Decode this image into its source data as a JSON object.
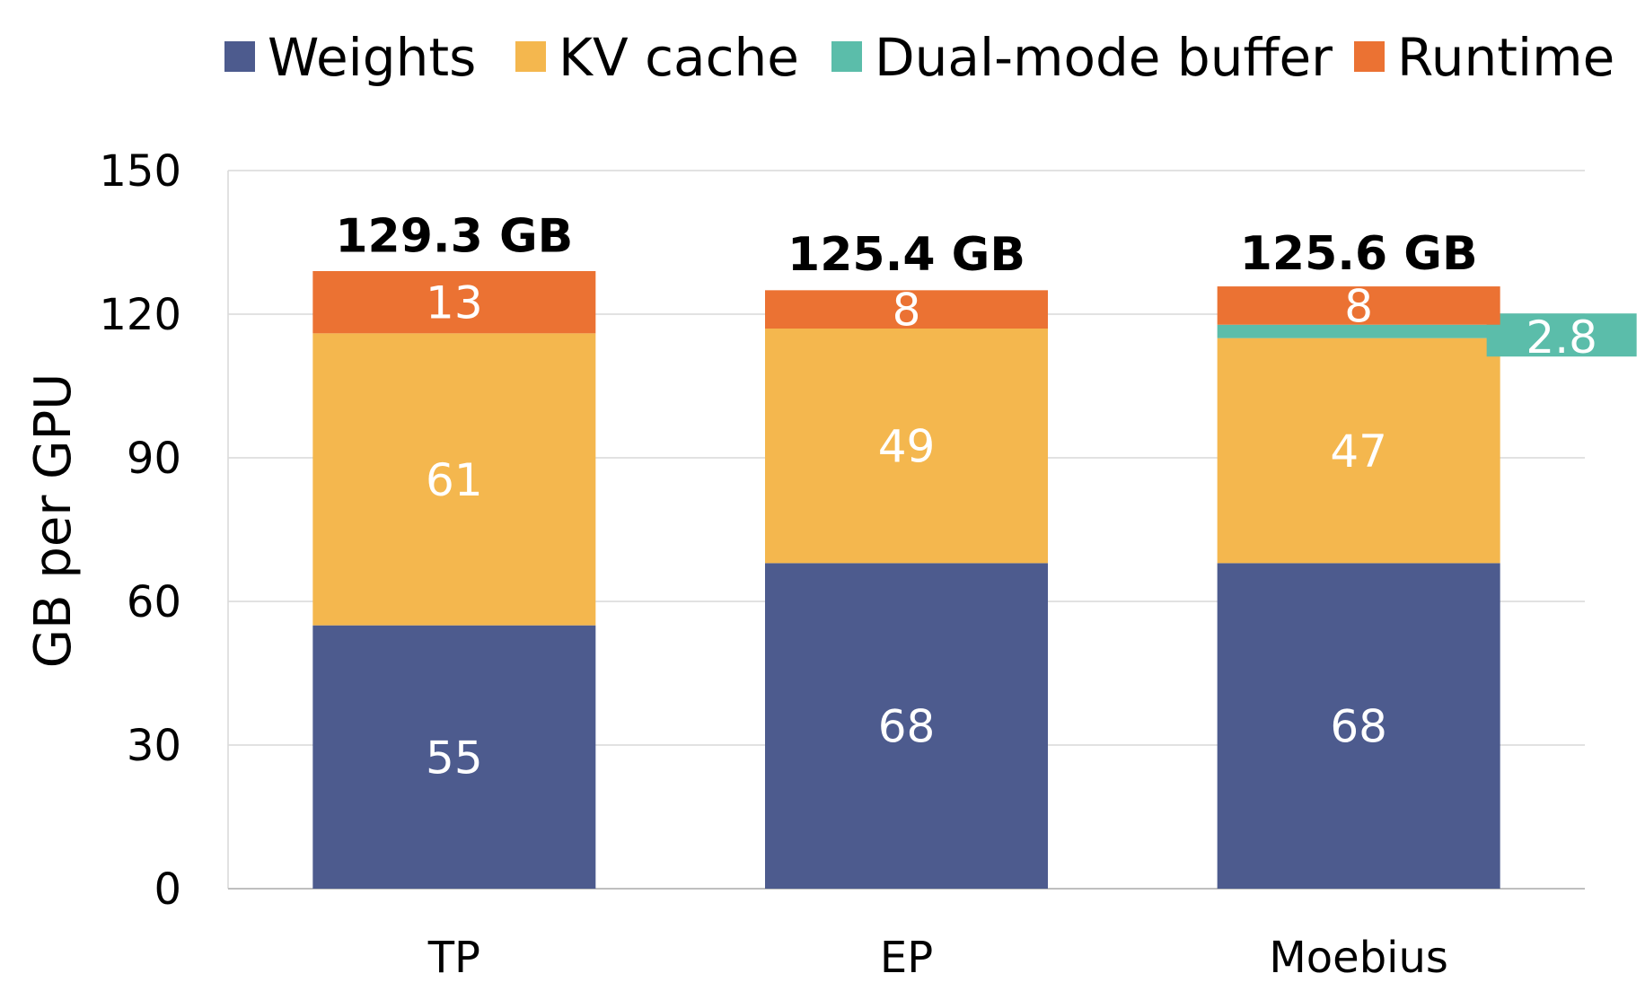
{
  "chart_data": {
    "type": "bar",
    "stacked": true,
    "title": "",
    "xlabel": "",
    "ylabel": "GB per GPU",
    "ylim": [
      0,
      150
    ],
    "yticks": [
      "0",
      "30",
      "60",
      "90",
      "120",
      "150"
    ],
    "grid": true,
    "legend_position": "top",
    "categories": [
      "TP",
      "EP",
      "Moebius"
    ],
    "series": [
      {
        "name": "Weights",
        "color": "#4d5b8e",
        "values": [
          55,
          68,
          68
        ],
        "labels": [
          "55",
          "68",
          "68"
        ]
      },
      {
        "name": "KV cache",
        "color": "#f4b74e",
        "values": [
          61,
          49,
          47
        ],
        "labels": [
          "61",
          "49",
          "47"
        ]
      },
      {
        "name": "Dual-mode buffer",
        "color": "#5bbdaa",
        "values": [
          0,
          0,
          2.8
        ],
        "labels": [
          "",
          "",
          "2.8"
        ]
      },
      {
        "name": "Runtime",
        "color": "#eb7233",
        "values": [
          13,
          8,
          8
        ],
        "labels": [
          "13",
          "8",
          "8"
        ]
      }
    ],
    "totals": [
      129.3,
      125.4,
      125.6
    ],
    "total_labels": [
      "129.3 GB",
      "125.4 GB",
      "125.6 GB"
    ]
  }
}
